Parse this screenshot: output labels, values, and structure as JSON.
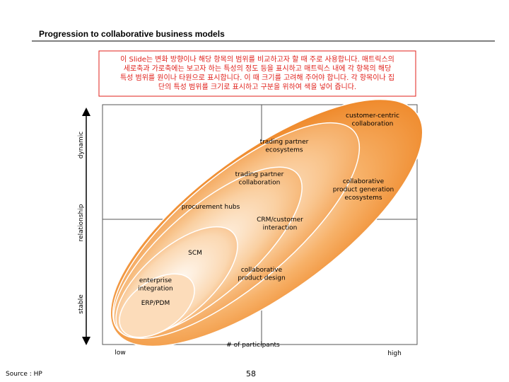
{
  "header": {
    "title": "Progression to collaborative business models"
  },
  "note": {
    "lines": [
      "이 Slide는 변화 방향이나 해당 항목의 범위를 비교하고자 할 때 주로 사용합니다. 매트릭스의",
      "세로축과 가로축에는 보고자 하는 특성의 정도 등을 표시하고 매트릭스 내에 각 항목의 해당",
      "특성 범위를 원이나 타원으로 표시합니다. 이 때 크기를 고려해 주어야 합니다. 각 항목이나 집",
      "단의 특성 범위를 크기로 표시하고 구분을 위하여 색을 넣어 줍니다."
    ]
  },
  "axes": {
    "y_label": "relationship",
    "y_top": "dynamic",
    "y_bottom": "stable",
    "x_label": "# of participants",
    "x_left": "low",
    "x_right": "high"
  },
  "items": [
    {
      "lines": [
        "customer-centric",
        "collaboration"
      ]
    },
    {
      "lines": [
        "trading partner",
        "ecosystems"
      ]
    },
    {
      "lines": [
        "trading partner",
        "collaboration"
      ]
    },
    {
      "lines": [
        "collaborative",
        "product generation",
        "ecosystems"
      ]
    },
    {
      "lines": [
        "procurement hubs"
      ]
    },
    {
      "lines": [
        "CRM/customer",
        "interaction"
      ]
    },
    {
      "lines": [
        "SCM"
      ]
    },
    {
      "lines": [
        "collaborative",
        "product design"
      ]
    },
    {
      "lines": [
        "enterprise",
        "integration"
      ]
    },
    {
      "lines": [
        "ERP/PDM"
      ]
    }
  ],
  "footer": {
    "source": "Source : HP",
    "page": "58"
  }
}
